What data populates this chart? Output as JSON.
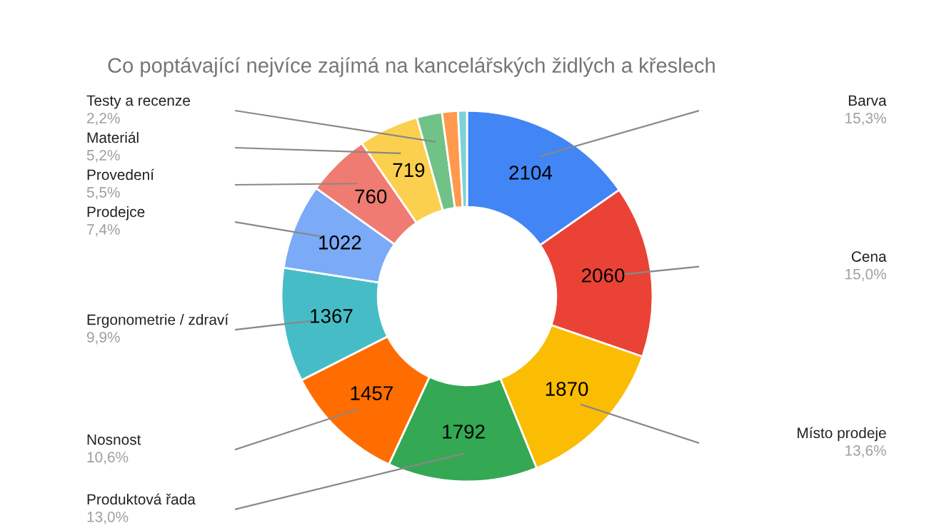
{
  "chart_data": {
    "type": "donut",
    "title": "Co poptávající nejvíce zajímá na kancelářských židlých a křeslech",
    "categories": [
      "Barva\n15,3%",
      "Cena\n15,0%",
      "Místo prodeje\n13,6%",
      "Produktová řada\n13,0%",
      "Nosnost\n10,6%",
      "Ergonometrie / zdraví\n9,9%",
      "Prodejce\n7,4%",
      "Provedení\n5,5%",
      "Materiál\n5,2%",
      "Testy a recenze\n2,2%",
      null,
      null
    ],
    "values": [
      2104,
      2060,
      1870,
      1792,
      1457,
      1367,
      1022,
      760,
      719,
      302,
      190,
      107
    ],
    "value_labels": [
      "2104",
      "2060",
      "1870",
      "1792",
      "1457",
      "1367",
      "1022",
      "760",
      "719",
      null,
      null,
      null
    ],
    "colors": [
      "#4285f4",
      "#ea4335",
      "#fbbc04",
      "#34a853",
      "#ff6d01",
      "#46bdc6",
      "#7baaf7",
      "#f07b72",
      "#fcd04f",
      "#71c287",
      "#ff994d",
      "#7ed1d7"
    ],
    "legend": false
  }
}
